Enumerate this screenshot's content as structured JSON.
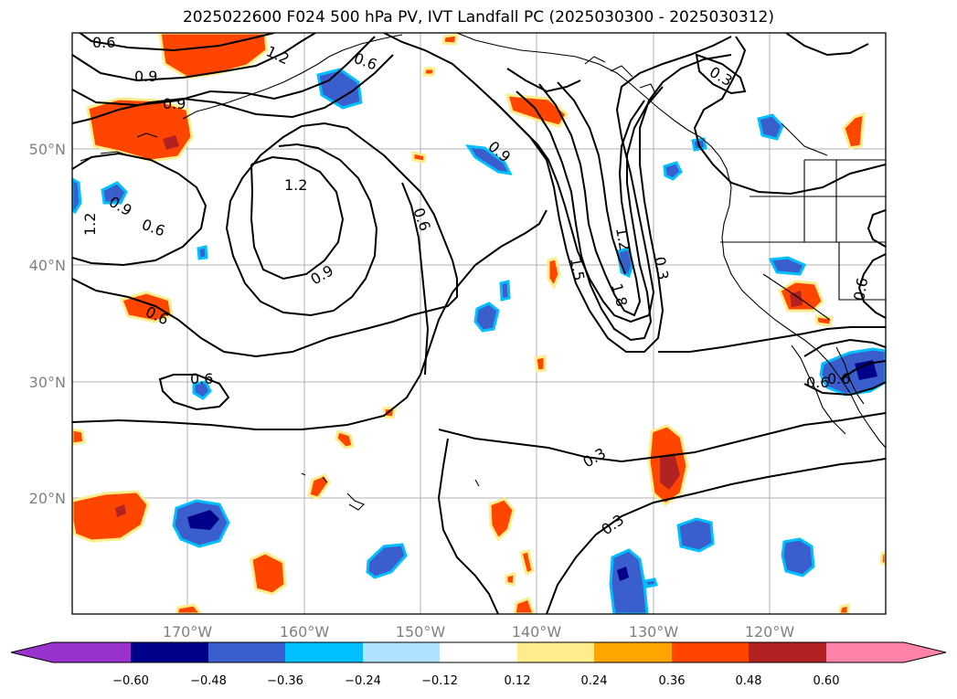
{
  "title": "2025022600 F024 500 hPa PV, IVT Landfall PC (2025030300 - 2025030312)",
  "lat_labels": [
    "50°N",
    "40°N",
    "30°N",
    "20°N"
  ],
  "lon_labels": [
    "170°W",
    "160°W",
    "150°W",
    "140°W",
    "130°W",
    "120°W"
  ],
  "contour_labels": [
    "0.6",
    "0.9",
    "0.9",
    "1.2",
    "0.6",
    "0.9",
    "0.6",
    "1.2",
    "1.2",
    "0.9",
    "0.6",
    "0.6",
    "0.9",
    "0.6",
    "1.5",
    "1.8",
    "1.2",
    "0.3",
    "0.3",
    "0.3",
    "0.6",
    "0.6",
    "0.6",
    "0.3"
  ],
  "colorbar": {
    "ticks": [
      "−0.60",
      "−0.48",
      "−0.36",
      "−0.24",
      "−0.12",
      "0.12",
      "0.24",
      "0.36",
      "0.48",
      "0.60"
    ],
    "colors": [
      "#9a32cd",
      "#00008b",
      "#3a5fcd",
      "#00bfff",
      "#b0e2ff",
      "#ffffff",
      "#ffec8b",
      "#ffa500",
      "#ff4500",
      "#b22222",
      "#ff83a8"
    ]
  }
}
